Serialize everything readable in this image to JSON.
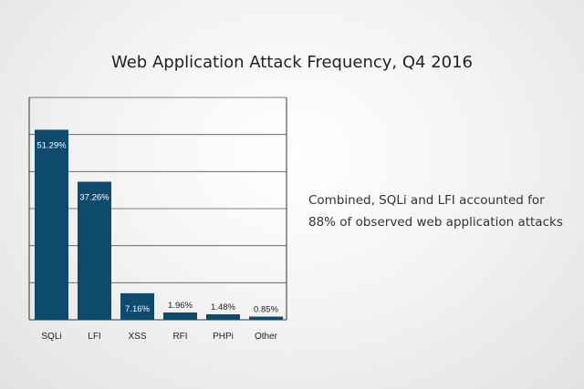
{
  "chart_data": {
    "type": "bar",
    "title": "Web Application Attack Frequency, Q4 2016",
    "categories": [
      "SQLi",
      "LFI",
      "XSS",
      "RFI",
      "PHPi",
      "Other"
    ],
    "values": [
      51.29,
      37.26,
      7.16,
      1.96,
      1.48,
      0.85
    ],
    "value_labels": [
      "51.29%",
      "37.26%",
      "7.16%",
      "1.96%",
      "1.48%",
      "0.85%"
    ],
    "ylim": [
      0,
      60
    ],
    "grid": true,
    "colors": {
      "bar": "#0d4a6b",
      "grid": "#555555",
      "axis": "#333333"
    }
  },
  "note": {
    "line1": "Combined, SQLi and LFI accounted for",
    "line2": "88% of observed web application attacks"
  }
}
